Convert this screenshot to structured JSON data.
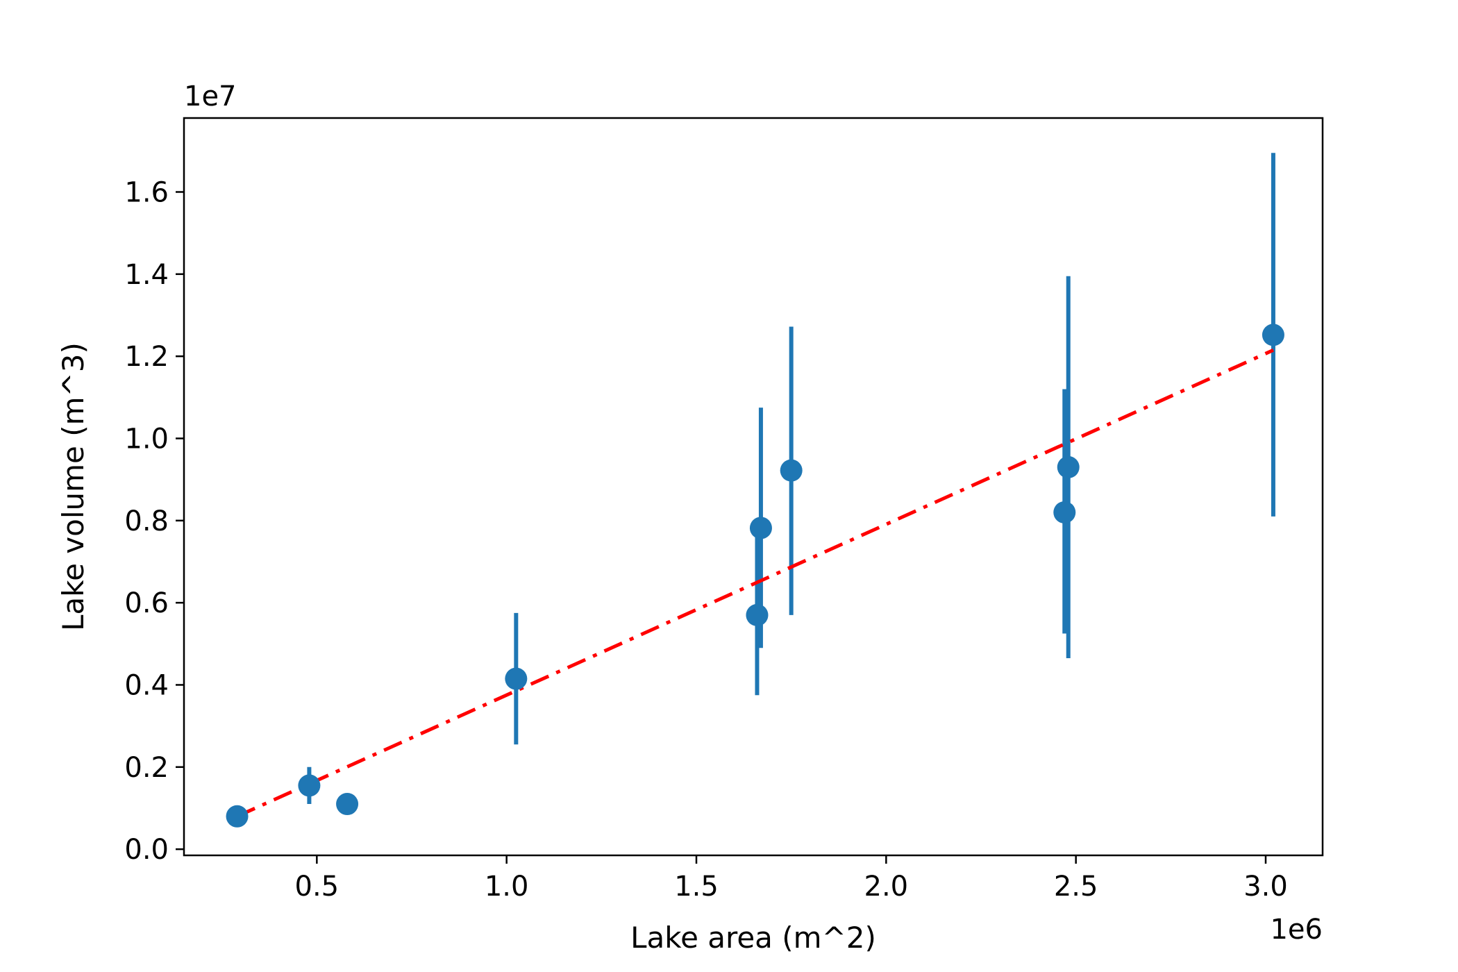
{
  "chart_data": {
    "type": "scatter",
    "title": "",
    "xlabel": "Lake area (m^2)",
    "ylabel": "Lake volume (m^3)",
    "x_offset_label": "1e6",
    "y_offset_label": "1e7",
    "xlim": [
      0.15,
      3.15
    ],
    "ylim": [
      -0.015,
      1.78
    ],
    "x_ticks": [
      0.5,
      1.0,
      1.5,
      2.0,
      2.5,
      3.0
    ],
    "x_tick_labels": [
      "0.5",
      "1.0",
      "1.5",
      "2.0",
      "2.5",
      "3.0"
    ],
    "y_ticks": [
      0.0,
      0.2,
      0.4,
      0.6,
      0.8,
      1.0,
      1.2,
      1.4,
      1.6
    ],
    "y_tick_labels": [
      "0.0",
      "0.2",
      "0.4",
      "0.6",
      "0.8",
      "1.0",
      "1.2",
      "1.4",
      "1.6"
    ],
    "grid": false,
    "points": [
      {
        "x": 0.29,
        "y": 0.08,
        "err_lo": 0.08,
        "err_hi": 0.08
      },
      {
        "x": 0.48,
        "y": 0.155,
        "err_lo": 0.11,
        "err_hi": 0.2
      },
      {
        "x": 0.58,
        "y": 0.11,
        "err_lo": 0.11,
        "err_hi": 0.11
      },
      {
        "x": 1.025,
        "y": 0.415,
        "err_lo": 0.255,
        "err_hi": 0.575
      },
      {
        "x": 1.66,
        "y": 0.57,
        "err_lo": 0.375,
        "err_hi": 0.765
      },
      {
        "x": 1.67,
        "y": 0.782,
        "err_lo": 0.49,
        "err_hi": 1.075
      },
      {
        "x": 1.75,
        "y": 0.922,
        "err_lo": 0.57,
        "err_hi": 1.272
      },
      {
        "x": 2.47,
        "y": 0.82,
        "err_lo": 0.525,
        "err_hi": 1.12
      },
      {
        "x": 2.48,
        "y": 0.93,
        "err_lo": 0.465,
        "err_hi": 1.395
      },
      {
        "x": 3.02,
        "y": 1.252,
        "err_lo": 0.81,
        "err_hi": 1.695
      }
    ],
    "fit_line": {
      "x": [
        0.29,
        3.02
      ],
      "y": [
        0.08,
        1.215
      ],
      "color": "#ff0000",
      "style": "dash-dot"
    },
    "marker_color": "#1f77b4"
  }
}
